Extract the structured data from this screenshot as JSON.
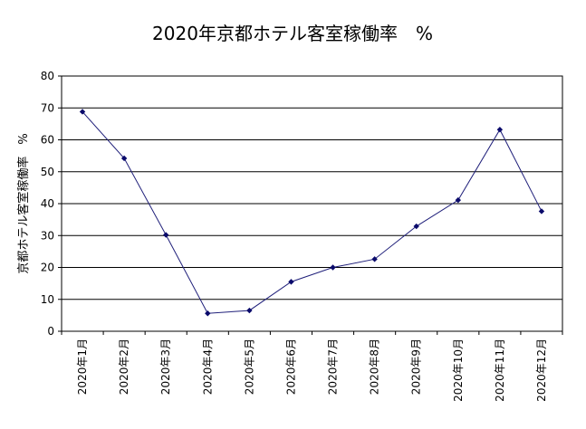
{
  "chart_data": {
    "type": "line",
    "title": "2020年京都ホテル客室稼働率　%",
    "xlabel": "",
    "ylabel": "京都ホテル客室稼働率　%",
    "categories": [
      "2020年1月",
      "2020年2月",
      "2020年3月",
      "2020年4月",
      "2020年5月",
      "2020年6月",
      "2020年7月",
      "2020年8月",
      "2020年9月",
      "2020年10月",
      "2020年11月",
      "2020年12月"
    ],
    "series": [
      {
        "values": [
          68.8,
          54.2,
          30.2,
          5.6,
          6.5,
          15.5,
          20.0,
          22.6,
          32.9,
          41.1,
          63.2,
          37.6
        ]
      }
    ],
    "ylim": [
      0,
      80
    ],
    "yticks": [
      0,
      10,
      20,
      30,
      40,
      50,
      60,
      70,
      80
    ],
    "grid": true,
    "legend": "none",
    "line_color": "#1f1f7a",
    "marker_color": "#0a0a6b"
  }
}
